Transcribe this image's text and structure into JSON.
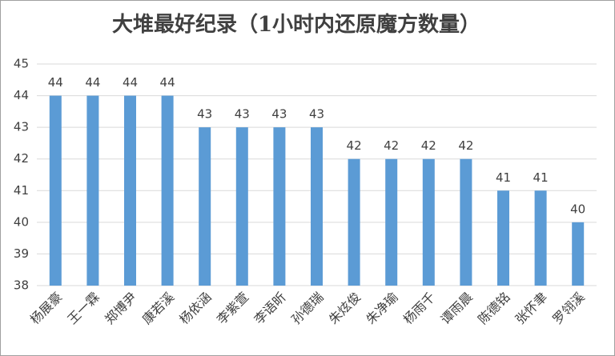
{
  "chart_data": {
    "type": "bar",
    "title": "大堆最好纪录（1小时内还原魔方数量）",
    "categories": [
      "杨展豪",
      "王一霖",
      "郑博尹",
      "康若溪",
      "杨依涵",
      "李紫萱",
      "李语昕",
      "孙德瑞",
      "朱炫俊",
      "朱净瑜",
      "杨雨千",
      "谭雨晨",
      "陈德铭",
      "张怀聿",
      "罗翎溪"
    ],
    "values": [
      44,
      44,
      44,
      44,
      43,
      43,
      43,
      43,
      42,
      42,
      42,
      42,
      41,
      41,
      40
    ],
    "color": "#5b9bd5",
    "ylim": [
      38,
      45
    ],
    "yticks": [
      38,
      39,
      40,
      41,
      42,
      43,
      44,
      45
    ],
    "grid": true
  }
}
